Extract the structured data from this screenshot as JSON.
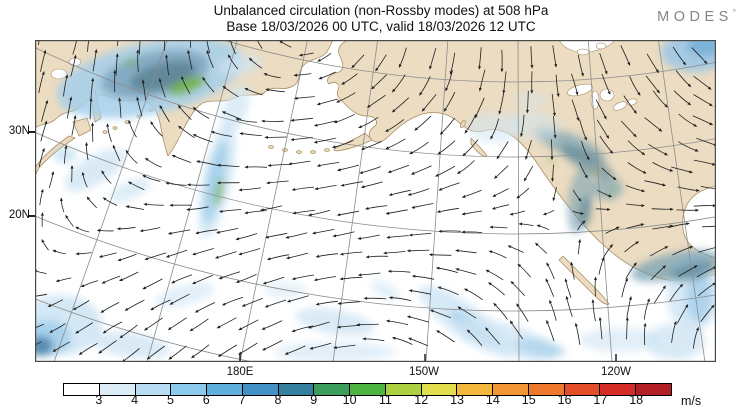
{
  "header": {
    "title_line1": "Unbalanced circulation (non-Rossby modes) at 508 hPa",
    "title_line2": "Base 18/03/2026 00 UTC, valid 18/03/2026 12 UTC",
    "logo_text": "MODES",
    "logo_sup": "°"
  },
  "chart_data": {
    "type": "map-vector-field",
    "title": "Unbalanced circulation (non-Rossby modes) at 508 hPa",
    "base_time": "18/03/2026 00 UTC",
    "valid_time": "18/03/2026 12 UTC",
    "level_hpa": 508,
    "region": "North Pacific, northeast Asia and North America",
    "projection": "curved graticule (polar perspective)",
    "field": "unbalanced wind vectors (arrows) with wind-speed shading",
    "lat_ticks": [
      "30N",
      "20N"
    ],
    "lon_ticks": [
      "180E",
      "150W",
      "120W"
    ],
    "colorbar": {
      "unit": "m/s",
      "tick_values": [
        3,
        4,
        5,
        6,
        7,
        8,
        9,
        10,
        11,
        12,
        13,
        14,
        15,
        16,
        17,
        18
      ],
      "segment_colors": [
        "#ffffff",
        "#dcedf8",
        "#b9def3",
        "#8dcbec",
        "#61afdd",
        "#4391c5",
        "#35809e",
        "#3d9d5c",
        "#4fb344",
        "#add043",
        "#e2df4e",
        "#f5b83f",
        "#f49837",
        "#ee782d",
        "#e34d28",
        "#d42c27",
        "#b22025"
      ]
    },
    "style_colors": {
      "land": "#ecdcc1",
      "coast": "#a98f62",
      "grid": "#8c8c8c",
      "arrow": "#1f1f1f",
      "frame": "#4a4a4a"
    },
    "shaded_maxima": [
      {
        "region": "northeast Siberia / north of Sea of Okhotsk",
        "peak_speed_ms": 9
      },
      {
        "region": "meridional band near 170E over western Pacific",
        "peak_speed_ms": 9
      },
      {
        "region": "southwestern United States",
        "peak_speed_ms": 9
      },
      {
        "region": "southern Mexico coast",
        "peak_speed_ms": 7
      },
      {
        "region": "bottom-left corner of domain",
        "peak_speed_ms": 7
      },
      {
        "region": "top-right corner of domain",
        "peak_speed_ms": 6
      },
      {
        "region": "scattered subtropical Pacific patches",
        "peak_speed_ms": 5
      }
    ]
  }
}
